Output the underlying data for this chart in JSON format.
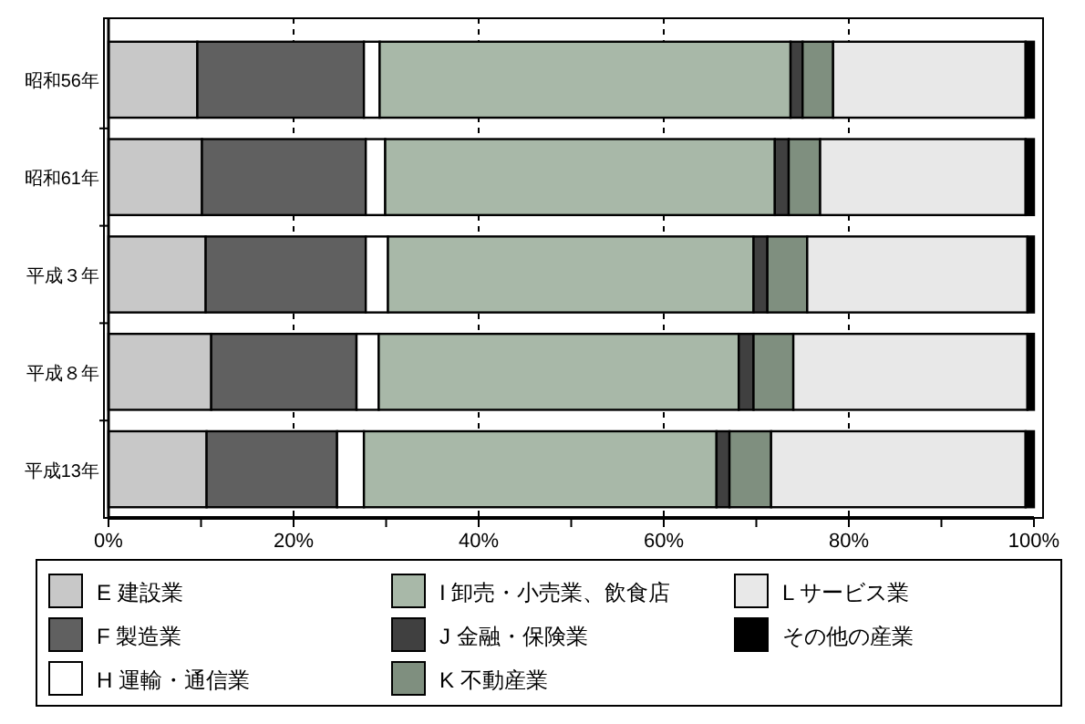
{
  "chart_data": {
    "type": "bar",
    "orientation": "horizontal",
    "stacked": true,
    "categories": [
      "昭和56年",
      "昭和61年",
      "平成３年",
      "平成８年",
      "平成13年"
    ],
    "series": [
      {
        "name": "E 建設業",
        "color": "#c8c8c8",
        "values": [
          9.6,
          10.1,
          10.5,
          11.1,
          10.6
        ]
      },
      {
        "name": "F 製造業",
        "color": "#606060",
        "values": [
          18.0,
          17.7,
          17.3,
          15.7,
          14.1
        ]
      },
      {
        "name": "H 運輸・通信業",
        "color": "#ffffff",
        "values": [
          1.7,
          2.1,
          2.4,
          2.4,
          2.9
        ]
      },
      {
        "name": "I 卸売・小売業、飲食店",
        "color": "#a8b8a8",
        "values": [
          44.4,
          42.1,
          39.5,
          38.9,
          38.1
        ]
      },
      {
        "name": "J 金融・保険業",
        "color": "#404040",
        "values": [
          1.3,
          1.5,
          1.5,
          1.6,
          1.4
        ]
      },
      {
        "name": "K 不動産業",
        "color": "#7f8f7f",
        "values": [
          3.3,
          3.4,
          4.3,
          4.3,
          4.5
        ]
      },
      {
        "name": "L サービス業",
        "color": "#e8e8e8",
        "values": [
          20.8,
          22.2,
          23.8,
          25.3,
          27.5
        ]
      },
      {
        "name": "その他の産業",
        "color": "#000000",
        "values": [
          0.9,
          0.9,
          0.7,
          0.7,
          0.9
        ]
      }
    ],
    "xlim": [
      0,
      100
    ],
    "xticks": [
      {
        "value": 0,
        "label": "0%"
      },
      {
        "value": 10,
        "label": null
      },
      {
        "value": 20,
        "label": "20%"
      },
      {
        "value": 30,
        "label": null
      },
      {
        "value": 40,
        "label": "40%"
      },
      {
        "value": 50,
        "label": null
      },
      {
        "value": 60,
        "label": "60%"
      },
      {
        "value": 70,
        "label": null
      },
      {
        "value": 80,
        "label": "80%"
      },
      {
        "value": 90,
        "label": null
      },
      {
        "value": 100,
        "label": "100%"
      }
    ],
    "grid": "x",
    "legend": "bottom"
  }
}
